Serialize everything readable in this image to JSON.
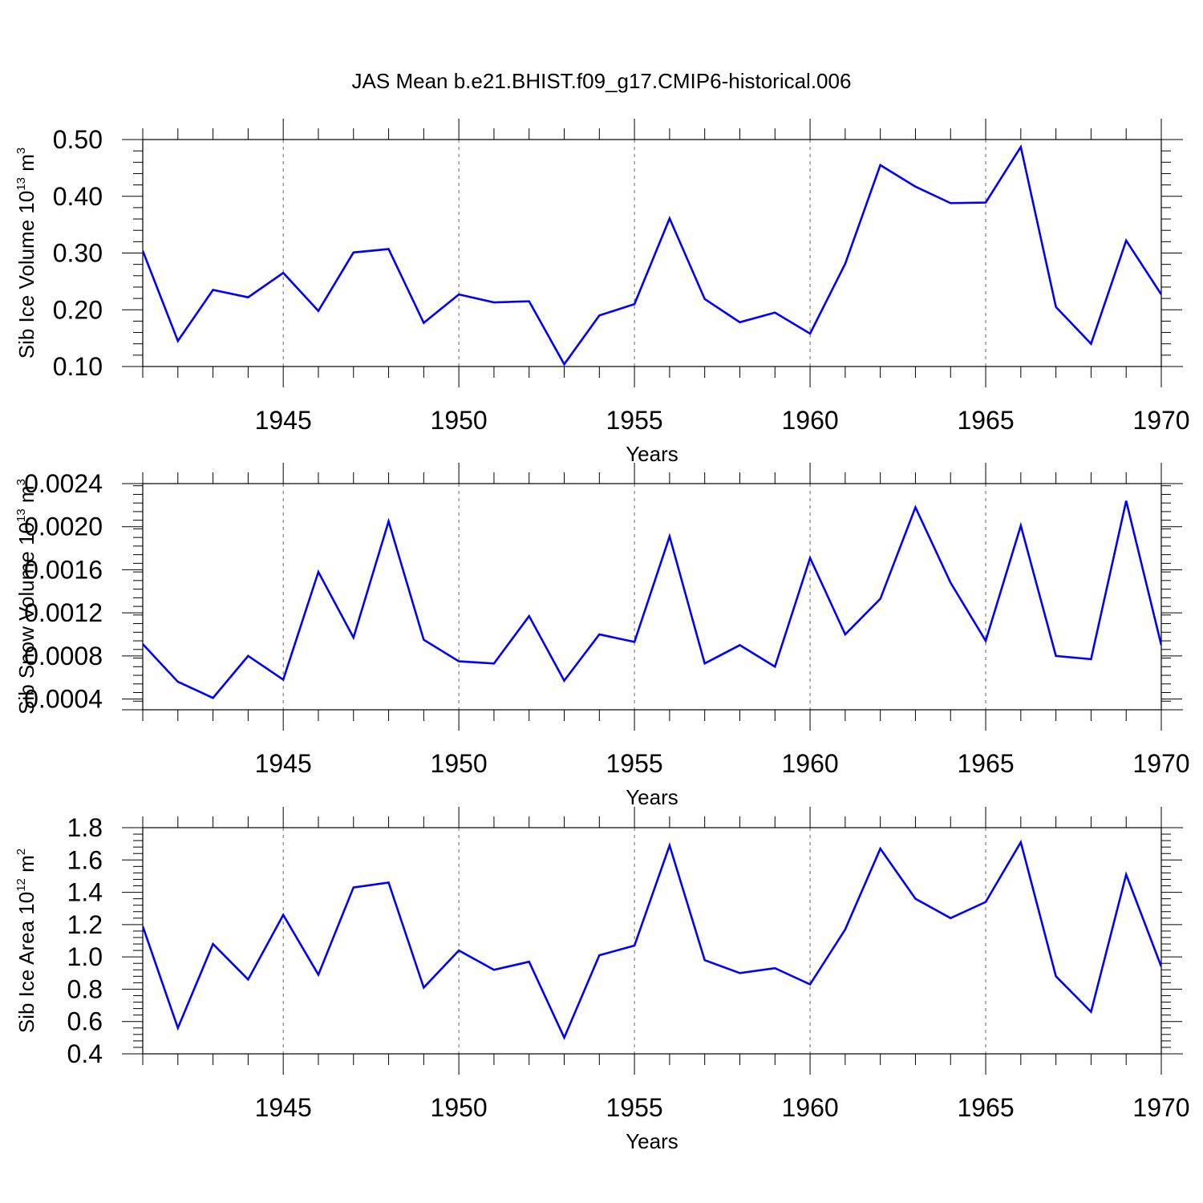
{
  "title": "JAS Mean b.e21.BHIST.f09_g17.CMIP6-historical.006",
  "colors": {
    "line": "#0000ff",
    "axes": "#000000",
    "grid": "#666666",
    "background": "#ffffff"
  },
  "chart_data": [
    {
      "type": "line",
      "title": "JAS Mean b.e21.BHIST.f09_g17.CMIP6-historical.006",
      "xlabel": "Years",
      "ylabel": {
        "text": "Sib Ice Volume 10",
        "exp1": "13",
        "mid": " m",
        "exp2": "3"
      },
      "xlim": [
        1941,
        1970
      ],
      "ylim": [
        0.1,
        0.5
      ],
      "x_ticks": [
        "1945",
        "1950",
        "1955",
        "1960",
        "1965",
        "1970"
      ],
      "y_ticks": [
        "0.10",
        "0.20",
        "0.30",
        "0.40",
        "0.50"
      ],
      "grid": "vertical dashed at major year ticks",
      "x": [
        1941,
        1942,
        1943,
        1944,
        1945,
        1946,
        1947,
        1948,
        1949,
        1950,
        1951,
        1952,
        1953,
        1954,
        1955,
        1956,
        1957,
        1958,
        1959,
        1960,
        1961,
        1962,
        1963,
        1964,
        1965,
        1966,
        1967,
        1968,
        1969,
        1970
      ],
      "series": [
        {
          "values": [
            0.304,
            0.145,
            0.235,
            0.222,
            0.265,
            0.198,
            0.301,
            0.307,
            0.177,
            0.227,
            0.213,
            0.215,
            0.104,
            0.19,
            0.21,
            0.361,
            0.219,
            0.178,
            0.195,
            0.158,
            0.281,
            0.455,
            0.417,
            0.388,
            0.389,
            0.487,
            0.205,
            0.14,
            0.322,
            0.227
          ]
        }
      ]
    },
    {
      "type": "line",
      "xlabel": "Years",
      "ylabel": {
        "text": "Sib Snow Volume 10",
        "exp1": "13",
        "mid": " m",
        "exp2": "3"
      },
      "xlim": [
        1941,
        1970
      ],
      "ylim": [
        0.0003,
        0.0024
      ],
      "x_ticks": [
        "1945",
        "1950",
        "1955",
        "1960",
        "1965",
        "1970"
      ],
      "y_ticks": [
        "0.0004",
        "0.0008",
        "0.0012",
        "0.0016",
        "0.0020",
        "0.0024"
      ],
      "grid": "vertical dashed at major year ticks",
      "x": [
        1941,
        1942,
        1943,
        1944,
        1945,
        1946,
        1947,
        1948,
        1949,
        1950,
        1951,
        1952,
        1953,
        1954,
        1955,
        1956,
        1957,
        1958,
        1959,
        1960,
        1961,
        1962,
        1963,
        1964,
        1965,
        1966,
        1967,
        1968,
        1969,
        1970
      ],
      "series": [
        {
          "values": [
            0.00091,
            0.00056,
            0.00041,
            0.0008,
            0.00058,
            0.00158,
            0.00097,
            0.00205,
            0.00095,
            0.00075,
            0.00073,
            0.00117,
            0.00057,
            0.001,
            0.00093,
            0.00191,
            0.00073,
            0.0009,
            0.0007,
            0.00171,
            0.001,
            0.00133,
            0.00218,
            0.00148,
            0.00094,
            0.00201,
            0.0008,
            0.00077,
            0.00224,
            0.0009
          ]
        }
      ]
    },
    {
      "type": "line",
      "xlabel": "Years",
      "ylabel": {
        "text": "Sib Ice Area 10",
        "exp1": "12",
        "mid": " m",
        "exp2": "2"
      },
      "xlim": [
        1941,
        1970
      ],
      "ylim": [
        0.4,
        1.8
      ],
      "x_ticks": [
        "1945",
        "1950",
        "1955",
        "1960",
        "1965",
        "1970"
      ],
      "y_ticks": [
        "0.4",
        "0.6",
        "0.8",
        "1.0",
        "1.2",
        "1.4",
        "1.6",
        "1.8"
      ],
      "grid": "vertical dashed at major year ticks",
      "x": [
        1941,
        1942,
        1943,
        1944,
        1945,
        1946,
        1947,
        1948,
        1949,
        1950,
        1951,
        1952,
        1953,
        1954,
        1955,
        1956,
        1957,
        1958,
        1959,
        1960,
        1961,
        1962,
        1963,
        1964,
        1965,
        1966,
        1967,
        1968,
        1969,
        1970
      ],
      "series": [
        {
          "values": [
            1.19,
            0.56,
            1.08,
            0.86,
            1.26,
            0.89,
            1.43,
            1.46,
            0.81,
            1.04,
            0.92,
            0.97,
            0.5,
            1.01,
            1.07,
            1.69,
            0.98,
            0.9,
            0.93,
            0.83,
            1.17,
            1.67,
            1.36,
            1.24,
            1.34,
            1.71,
            0.88,
            0.66,
            1.51,
            0.94
          ]
        }
      ]
    }
  ]
}
